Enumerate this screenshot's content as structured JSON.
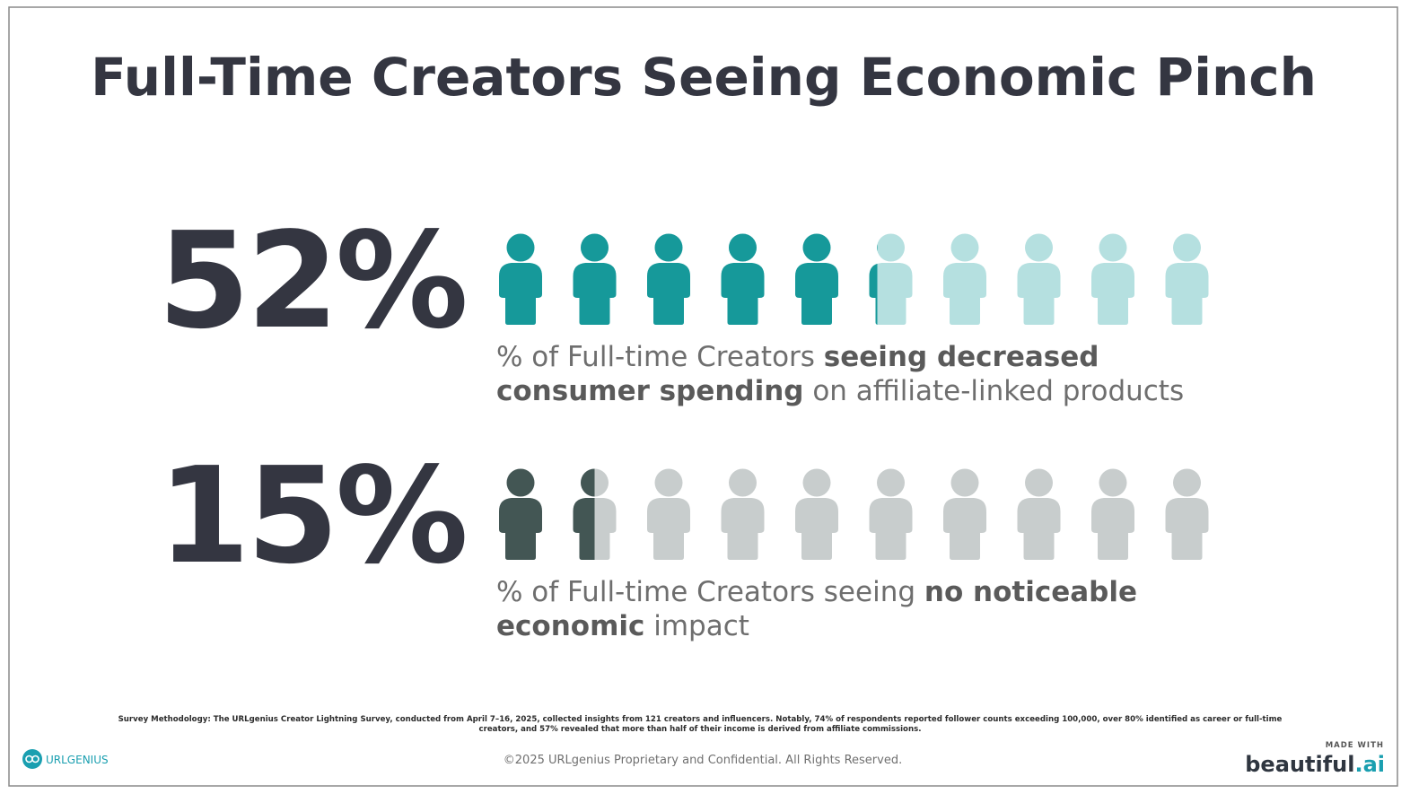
{
  "title": "Full-Time Creators Seeing Economic Pinch",
  "chart_data": [
    {
      "type": "pictograph",
      "values": [
        52
      ],
      "value_labels": [
        "52%"
      ],
      "total": 100,
      "icon_count": 10,
      "color": "#16999a",
      "empty_color": "#b5e0e0",
      "caption": [
        [
          {
            "text": "% of Full-time Creators ",
            "bold": false
          },
          {
            "text": "seeing decreased",
            "bold": true
          }
        ],
        [
          {
            "text": "consumer spending",
            "bold": true
          },
          {
            "text": " on affiliate-linked products",
            "bold": false
          }
        ]
      ]
    },
    {
      "type": "pictograph",
      "values": [
        15
      ],
      "value_labels": [
        "15%"
      ],
      "total": 100,
      "icon_count": 10,
      "color": "#435654",
      "empty_color": "#c8cdcd",
      "caption": [
        [
          {
            "text": "% of Full-time Creators seeing ",
            "bold": false
          },
          {
            "text": "no noticeable",
            "bold": true
          }
        ],
        [
          {
            "text": "economic",
            "bold": true
          },
          {
            "text": " impact",
            "bold": false
          }
        ]
      ]
    }
  ],
  "footnote": [
    "Survey Methodology: The URLgenius Creator Lightning Survey, conducted from April 7–16, 2025, collected insights from 121 creators and influencers. Notably, 74% of respondents reported follower counts exceeding 100,000, over 80% identified as career or full-time",
    "creators, and 57% revealed that more than half of their income is derived from affiliate commissions."
  ],
  "copyright": "©2025 URLgenius Proprietary and Confidential. All Rights Reserved.",
  "logo": "URLGENIUS",
  "badge_caption": "MADE WITH",
  "badge": [
    {
      "text": "beautiful",
      "color": "#2f3640"
    },
    {
      "text": ".ai",
      "color": "#1a9fb0"
    }
  ]
}
